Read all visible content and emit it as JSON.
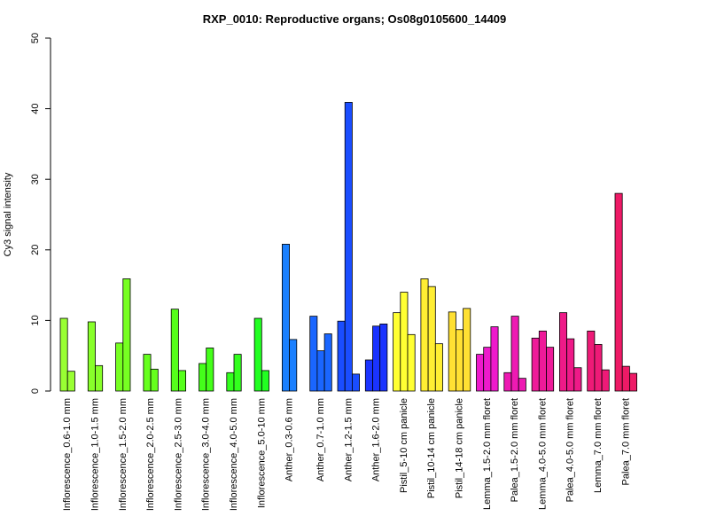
{
  "chart_data": {
    "type": "bar",
    "title": "RXP_0010: Reproductive organs; Os08g0105600_14409",
    "xlabel": "",
    "ylabel": "Cy3 signal intensity",
    "ylim": [
      0,
      50
    ],
    "yticks": [
      0,
      10,
      20,
      30,
      40,
      50
    ],
    "grid": false,
    "categories": [
      {
        "label": "Inflorescence_0.6-1.0 mm",
        "color": "#99ff33",
        "values": [
          10.3,
          2.8
        ]
      },
      {
        "label": "Inflorescence_1.0-1.5 mm",
        "color": "#88ff2a",
        "values": [
          9.8,
          3.6
        ]
      },
      {
        "label": "Inflorescence_1.5-2.0 mm",
        "color": "#77ff22",
        "values": [
          6.8,
          15.9
        ]
      },
      {
        "label": "Inflorescence_2.0-2.5 mm",
        "color": "#66ff1e",
        "values": [
          5.2,
          3.1
        ]
      },
      {
        "label": "Inflorescence_2.5-3.0 mm",
        "color": "#55ff1a",
        "values": [
          11.6,
          2.9
        ]
      },
      {
        "label": "Inflorescence_3.0-4.0 mm",
        "color": "#44ff1a",
        "values": [
          3.9,
          6.1
        ]
      },
      {
        "label": "Inflorescence_4.0-5.0 mm",
        "color": "#33ff1e",
        "values": [
          2.6,
          5.2
        ]
      },
      {
        "label": "Inflorescence_5.0-10 mm",
        "color": "#22ff22",
        "values": [
          10.3,
          2.9
        ]
      },
      {
        "label": "Anther_0.3-0.6 mm",
        "color": "#1a80ff",
        "values": [
          20.8,
          7.3
        ]
      },
      {
        "label": "Anther_0.7-1.0 mm",
        "color": "#1a66ff",
        "values": [
          10.6,
          5.7,
          8.1
        ]
      },
      {
        "label": "Anther_1.2-1.5 mm",
        "color": "#1a4dff",
        "values": [
          9.9,
          40.9,
          2.4
        ]
      },
      {
        "label": "Anther_1.6-2.0 mm",
        "color": "#1a33ff",
        "values": [
          4.4,
          9.2,
          9.5
        ]
      },
      {
        "label": "Pistil_5-10 cm panicle",
        "color": "#ffff33",
        "values": [
          11.1,
          14.0,
          8.0
        ]
      },
      {
        "label": "Pistil_10-14 cm panicle",
        "color": "#ffee33",
        "values": [
          15.9,
          14.8,
          6.7
        ]
      },
      {
        "label": "Pistil_14-18 cm panicle",
        "color": "#ffe033",
        "values": [
          11.2,
          8.7,
          11.7
        ]
      },
      {
        "label": "Lemma_1.5-2.0 mm floret",
        "color": "#ee1acc",
        "values": [
          5.2,
          6.2,
          9.1
        ]
      },
      {
        "label": "Palea_1.5-2.0 mm floret",
        "color": "#ee1ab3",
        "values": [
          2.6,
          10.6,
          1.8
        ]
      },
      {
        "label": "Lemma_4.0-5.0 mm floret",
        "color": "#ee1a99",
        "values": [
          7.5,
          8.5,
          6.2
        ]
      },
      {
        "label": "Palea_4.0-5.0 mm floret",
        "color": "#ee1a88",
        "values": [
          11.1,
          7.4,
          3.3
        ]
      },
      {
        "label": "Lemma_7.0 mm floret",
        "color": "#ee1a77",
        "values": [
          8.5,
          6.6,
          3.0
        ]
      },
      {
        "label": "Palea_7.0 mm floret",
        "color": "#ee1a66",
        "values": [
          28.0,
          3.5,
          2.5
        ]
      }
    ]
  }
}
